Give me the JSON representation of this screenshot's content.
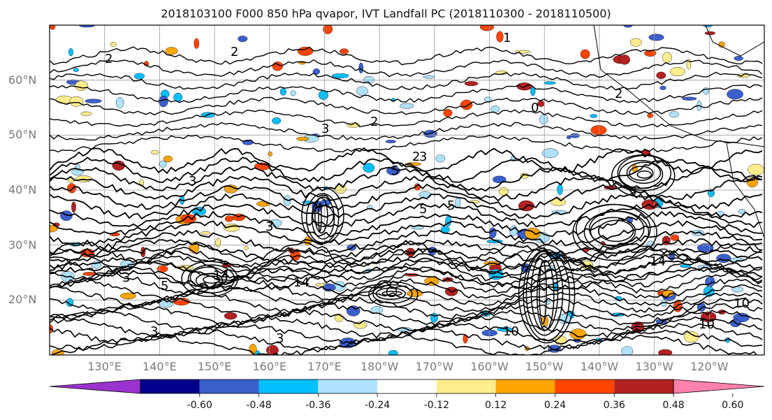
{
  "title": "2018103100 F000 850 hPa qvapor, IVT Landfall PC (2018110300 - 2018110500)",
  "map": {
    "lat_labels": [
      "60°N",
      "50°N",
      "40°N",
      "30°N",
      "20°N"
    ],
    "lon_labels": [
      "130°E",
      "140°E",
      "150°E",
      "160°E",
      "170°E",
      "180°W",
      "170°W",
      "160°W",
      "150°W",
      "140°W",
      "130°W",
      "120°W"
    ],
    "extent": {
      "lon_min": 120,
      "lon_max": 250,
      "lat_min": 10,
      "lat_max": 70
    },
    "contour_labels": [
      "2",
      "2",
      "2",
      "1",
      "2",
      "3",
      "3",
      "3",
      "3",
      "5",
      "5",
      "3",
      "5",
      "14",
      "14",
      "14",
      "10",
      "10",
      "10",
      "3",
      "3",
      "5",
      "5",
      "2",
      "0"
    ],
    "grid": true
  },
  "colorbar": {
    "colors": [
      "#9a32cd",
      "#00008b",
      "#3a5fcd",
      "#00bfff",
      "#b0e2ff",
      "#ffffff",
      "#ffec8b",
      "#ffa500",
      "#ff4500",
      "#b22222",
      "#ff82ab"
    ],
    "tick_labels": [
      "-0.60",
      "-0.48",
      "-0.36",
      "-0.24",
      "-0.12",
      "0.12",
      "0.24",
      "0.36",
      "0.48",
      "0.60"
    ]
  }
}
